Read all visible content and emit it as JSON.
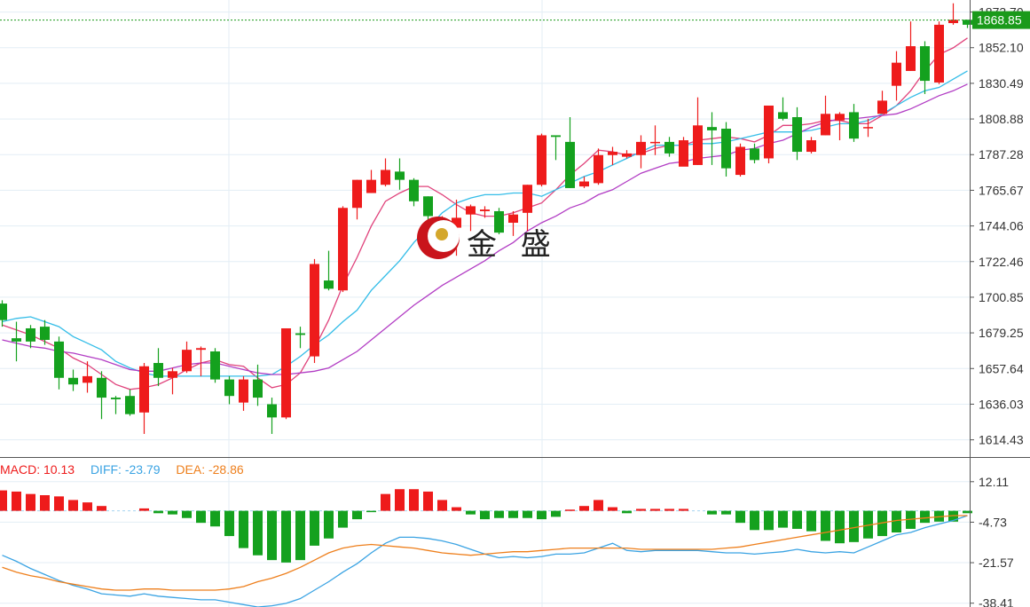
{
  "colors": {
    "up": "#ee1b1b",
    "down": "#14a11e",
    "ma5": "#e0427b",
    "ma10": "#34bde8",
    "ma20": "#b23dc4",
    "diff": "#3aa3e3",
    "dea": "#ee7f1c",
    "grid": "#e3eef5",
    "last_price_line": "#1a9a1a"
  },
  "chart_data": [
    {
      "type": "candlestick",
      "title": "",
      "last_price_label": "1868.85",
      "last_price": 1868.85,
      "ylim": [
        1604,
        1881
      ],
      "y_ticks": [
        "1873.70",
        "1852.10",
        "1830.49",
        "1808.88",
        "1787.28",
        "1765.67",
        "1744.06",
        "1722.46",
        "1700.85",
        "1679.25",
        "1657.64",
        "1636.03",
        "1614.43"
      ],
      "y_tick_values": [
        1873.7,
        1852.1,
        1830.49,
        1808.88,
        1787.28,
        1765.67,
        1744.06,
        1722.46,
        1700.85,
        1679.25,
        1657.64,
        1636.03,
        1614.43
      ],
      "candles": [
        [
          1697,
          1687,
          1699,
          1683
        ],
        [
          1676,
          1674,
          1686,
          1662
        ],
        [
          1682,
          1674,
          1684,
          1670
        ],
        [
          1683,
          1675,
          1687,
          1672
        ],
        [
          1674,
          1652,
          1677,
          1645
        ],
        [
          1652,
          1648,
          1657,
          1644
        ],
        [
          1649,
          1653,
          1662,
          1643
        ],
        [
          1652,
          1640,
          1656,
          1627
        ],
        [
          1640,
          1639,
          1641,
          1630
        ],
        [
          1641,
          1630,
          1645,
          1629
        ],
        [
          1631,
          1659,
          1661,
          1618
        ],
        [
          1661,
          1652,
          1670,
          1647
        ],
        [
          1652,
          1656,
          1658,
          1642
        ],
        [
          1656,
          1669,
          1674,
          1655
        ],
        [
          1669,
          1670,
          1671,
          1653
        ],
        [
          1668,
          1651,
          1670,
          1649
        ],
        [
          1651,
          1641,
          1653,
          1636
        ],
        [
          1637,
          1651,
          1653,
          1632
        ],
        [
          1651,
          1640,
          1660,
          1635
        ],
        [
          1636,
          1628,
          1640,
          1618
        ],
        [
          1628,
          1682,
          1682,
          1627
        ],
        [
          1679,
          1678,
          1683,
          1670
        ],
        [
          1665,
          1721,
          1724,
          1661
        ],
        [
          1711,
          1706,
          1729,
          1705
        ],
        [
          1705,
          1755,
          1756,
          1704
        ],
        [
          1755,
          1772,
          1772,
          1748
        ],
        [
          1764,
          1772,
          1778,
          1764
        ],
        [
          1769,
          1778,
          1785,
          1768
        ],
        [
          1777,
          1772,
          1785,
          1766
        ],
        [
          1772,
          1759,
          1773,
          1756
        ],
        [
          1762,
          1750,
          1762,
          1742
        ],
        [
          1738,
          1748,
          1750,
          1730
        ],
        [
          1743,
          1749,
          1760,
          1726
        ],
        [
          1751,
          1756,
          1757,
          1741
        ],
        [
          1753,
          1754,
          1756,
          1749
        ],
        [
          1753,
          1740,
          1755,
          1739
        ],
        [
          1746,
          1751,
          1753,
          1738
        ],
        [
          1752,
          1769,
          1769,
          1741
        ],
        [
          1769,
          1799,
          1800,
          1768
        ],
        [
          1799,
          1798,
          1798,
          1784
        ],
        [
          1795,
          1767,
          1810,
          1767
        ],
        [
          1768,
          1771,
          1774,
          1767
        ],
        [
          1770,
          1787,
          1791,
          1769
        ],
        [
          1787,
          1789,
          1792,
          1781
        ],
        [
          1786,
          1788,
          1790,
          1785
        ],
        [
          1787,
          1795,
          1799,
          1779
        ],
        [
          1795,
          1795,
          1805,
          1787
        ],
        [
          1795,
          1788,
          1798,
          1786
        ],
        [
          1780,
          1796,
          1798,
          1781
        ],
        [
          1781,
          1805,
          1822,
          1781
        ],
        [
          1804,
          1802,
          1813,
          1781
        ],
        [
          1803,
          1779,
          1807,
          1774
        ],
        [
          1775,
          1792,
          1794,
          1774
        ],
        [
          1791,
          1784,
          1794,
          1782
        ],
        [
          1785,
          1817,
          1817,
          1782
        ],
        [
          1813,
          1809,
          1822,
          1808
        ],
        [
          1810,
          1789,
          1816,
          1784
        ],
        [
          1789,
          1796,
          1798,
          1788
        ],
        [
          1799,
          1812,
          1823,
          1799
        ],
        [
          1808,
          1812,
          1813,
          1796
        ],
        [
          1813,
          1797,
          1818,
          1795
        ],
        [
          1804,
          1804,
          1809,
          1798
        ],
        [
          1812,
          1820,
          1826,
          1812
        ],
        [
          1829,
          1843,
          1850,
          1820
        ],
        [
          1838,
          1853,
          1868,
          1838
        ],
        [
          1853,
          1832,
          1856,
          1824
        ],
        [
          1831,
          1866,
          1868,
          1830
        ],
        [
          1867,
          1869,
          1879,
          1866
        ],
        [
          1869,
          1866,
          1869,
          1864
        ]
      ],
      "ma5": [
        1684,
        1681,
        1678,
        1674,
        1670,
        1664,
        1660,
        1654,
        1648,
        1645,
        1646,
        1648,
        1652,
        1657,
        1661,
        1663,
        1660,
        1659,
        1652,
        1646,
        1648,
        1655,
        1670,
        1687,
        1708,
        1725,
        1744,
        1759,
        1764,
        1768,
        1768,
        1763,
        1757,
        1752,
        1750,
        1750,
        1752,
        1755,
        1758,
        1766,
        1775,
        1782,
        1790,
        1789,
        1787,
        1788,
        1791,
        1793,
        1793,
        1796,
        1797,
        1798,
        1797,
        1795,
        1799,
        1805,
        1805,
        1806,
        1808,
        1808,
        1806,
        1806,
        1811,
        1817,
        1826,
        1838,
        1848,
        1852,
        1858
      ],
      "ma10": [
        1686,
        1688,
        1689,
        1686,
        1683,
        1677,
        1673,
        1669,
        1662,
        1658,
        1655,
        1653,
        1653,
        1653,
        1653,
        1653,
        1653,
        1653,
        1653,
        1654,
        1659,
        1665,
        1672,
        1678,
        1686,
        1693,
        1705,
        1714,
        1723,
        1734,
        1743,
        1752,
        1758,
        1761,
        1763,
        1763,
        1764,
        1764,
        1762,
        1766,
        1770,
        1774,
        1777,
        1781,
        1785,
        1789,
        1793,
        1793,
        1793,
        1794,
        1794,
        1795,
        1797,
        1799,
        1801,
        1801,
        1801,
        1802,
        1804,
        1806,
        1806,
        1808,
        1812,
        1817,
        1822,
        1826,
        1828,
        1833,
        1838
      ],
      "ma20": [
        1675,
        1673,
        1671,
        1670,
        1668,
        1667,
        1665,
        1663,
        1660,
        1657,
        1656,
        1656,
        1658,
        1660,
        1661,
        1661,
        1659,
        1657,
        1655,
        1654,
        1654,
        1655,
        1656,
        1658,
        1663,
        1668,
        1675,
        1682,
        1689,
        1696,
        1702,
        1708,
        1713,
        1718,
        1723,
        1729,
        1734,
        1741,
        1746,
        1750,
        1755,
        1758,
        1763,
        1766,
        1771,
        1776,
        1779,
        1782,
        1783,
        1785,
        1786,
        1787,
        1790,
        1791,
        1794,
        1796,
        1800,
        1804,
        1807,
        1809,
        1809,
        1810,
        1811,
        1812,
        1815,
        1819,
        1823,
        1826,
        1830
      ]
    },
    {
      "type": "macd",
      "legend": {
        "macd": "MACD: 10.13",
        "diff": "DIFF: -23.79",
        "dea": "DEA: -28.86"
      },
      "ylim": [
        -40,
        22
      ],
      "y_ticks": [
        "12.11",
        "-4.73",
        "-21.57",
        "-38.41"
      ],
      "y_tick_values": [
        12.11,
        -4.73,
        -21.57,
        -38.41
      ],
      "histogram": [
        8.5,
        8.0,
        7.0,
        6.5,
        6.0,
        4.5,
        3.5,
        2.0,
        0,
        0,
        1.0,
        -1.0,
        -1.5,
        -3.0,
        -5.0,
        -6.5,
        -10.5,
        -15.5,
        -18.5,
        -20.5,
        -21.5,
        -20.5,
        -14.5,
        -11.5,
        -7.0,
        -3.5,
        -0.5,
        7.0,
        9.0,
        9.0,
        8.0,
        4.5,
        1.5,
        -1.5,
        -3.5,
        -3.0,
        -3.0,
        -3.0,
        -3.5,
        -2.5,
        0.5,
        2.0,
        4.5,
        1.5,
        -1.0,
        0.8,
        0.8,
        0.8,
        0.8,
        0,
        -1.5,
        -1.5,
        -5.0,
        -8.0,
        -8.0,
        -7.0,
        -7.5,
        -8.5,
        -12.5,
        -13.5,
        -13.0,
        -11.5,
        -10.5,
        -9.0,
        -7.5,
        -5.0,
        -4.5,
        -4.5,
        -1.0
      ],
      "diff": [
        -18.5,
        -21.0,
        -24.0,
        -26.5,
        -29.0,
        -31.0,
        -32.5,
        -34.5,
        -35.0,
        -35.5,
        -34.5,
        -35.5,
        -36.0,
        -36.5,
        -37.0,
        -37.0,
        -38.0,
        -39.0,
        -40.0,
        -39.5,
        -38.5,
        -36.5,
        -33.0,
        -29.5,
        -25.5,
        -22.0,
        -17.5,
        -13.5,
        -11.0,
        -11.0,
        -11.5,
        -12.5,
        -14.0,
        -16.0,
        -18.0,
        -19.5,
        -19.0,
        -19.5,
        -19.0,
        -18.0,
        -18.0,
        -17.5,
        -15.5,
        -13.5,
        -16.5,
        -17.0,
        -16.5,
        -16.5,
        -16.5,
        -16.5,
        -17.0,
        -17.5,
        -17.5,
        -18.0,
        -17.5,
        -17.0,
        -16.0,
        -17.0,
        -17.5,
        -17.0,
        -17.5,
        -15.0,
        -12.5,
        -10.0,
        -9.0,
        -7.0,
        -5.5,
        -4.0,
        -2.0
      ],
      "dea": [
        -23.5,
        -25.5,
        -27.0,
        -28.0,
        -29.5,
        -30.5,
        -31.5,
        -32.5,
        -33.0,
        -33.0,
        -32.5,
        -32.5,
        -33.0,
        -33.0,
        -33.0,
        -33.0,
        -32.5,
        -31.5,
        -29.5,
        -28.0,
        -26.0,
        -23.5,
        -20.5,
        -17.5,
        -15.5,
        -14.5,
        -14.0,
        -14.5,
        -15.0,
        -15.5,
        -16.5,
        -17.5,
        -18.0,
        -18.5,
        -18.0,
        -17.5,
        -17.0,
        -17.0,
        -16.5,
        -16.0,
        -15.5,
        -15.5,
        -15.5,
        -15.5,
        -15.5,
        -16.0,
        -16.0,
        -16.0,
        -16.0,
        -16.0,
        -16.0,
        -15.5,
        -15.0,
        -14.0,
        -13.0,
        -12.0,
        -11.0,
        -10.0,
        -9.0,
        -8.0,
        -7.0,
        -6.0,
        -5.0,
        -4.0,
        -3.5,
        -3.0,
        -2.5,
        -2.0,
        -2.0
      ]
    }
  ],
  "logo": {
    "text": "金 盛"
  }
}
